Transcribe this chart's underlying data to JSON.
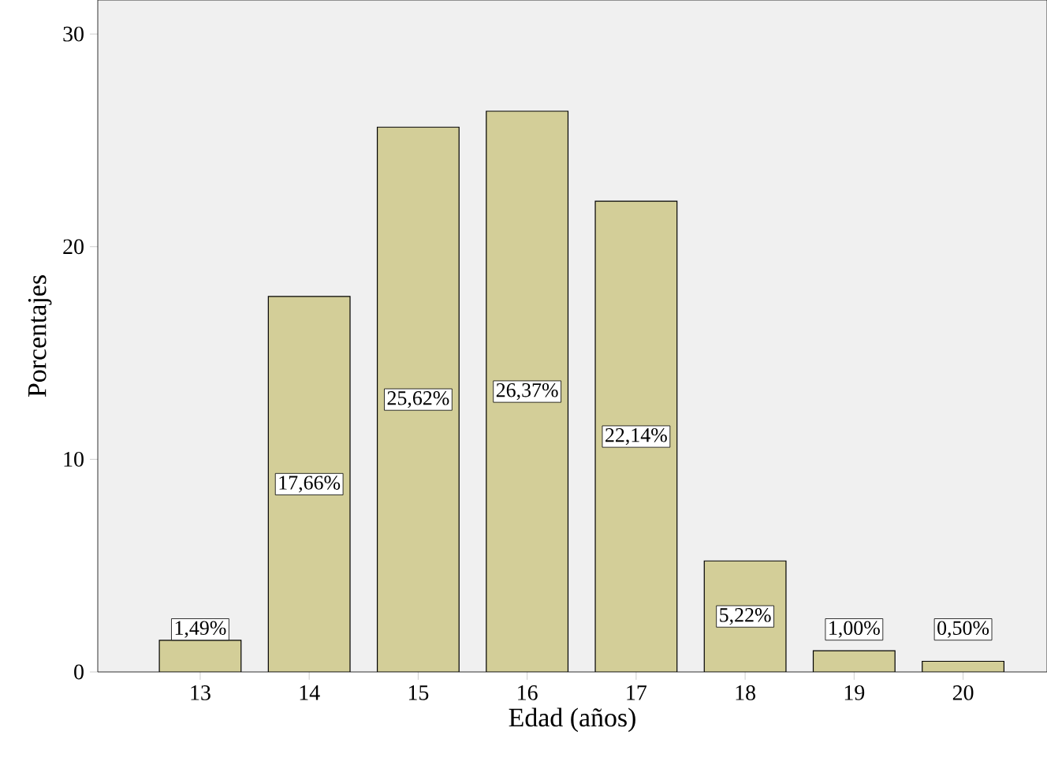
{
  "chart_data": {
    "type": "bar",
    "xlabel": "Edad (años)",
    "ylabel": "Porcentajes",
    "categories": [
      "13",
      "14",
      "15",
      "16",
      "17",
      "18",
      "19",
      "20"
    ],
    "values": [
      1.49,
      17.66,
      25.62,
      26.37,
      22.14,
      5.22,
      1.0,
      0.5
    ],
    "value_labels": [
      "1,49%",
      "17,66%",
      "25,62%",
      "26,37%",
      "22,14%",
      "5,22%",
      "1,00%",
      "0,50%"
    ],
    "color": "#d3ce98",
    "ylim": [
      0,
      31.6
    ],
    "yticks": [
      0,
      10,
      20,
      30
    ]
  }
}
